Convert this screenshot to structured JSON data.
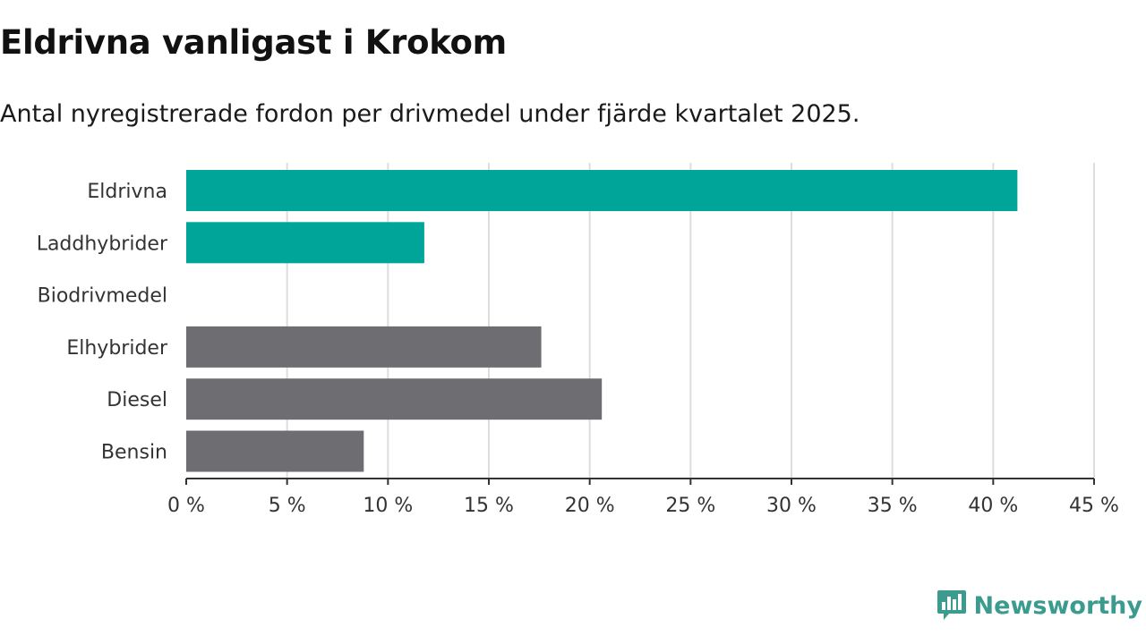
{
  "title": "Eldrivna vanligast i Krokom",
  "subtitle": "Antal nyregistrerade fordon per drivmedel under fjärde kvartalet 2025.",
  "chart_data": {
    "type": "bar",
    "orientation": "horizontal",
    "categories": [
      "Eldrivna",
      "Laddhybrider",
      "Biodrivmedel",
      "Elhybrider",
      "Diesel",
      "Bensin"
    ],
    "values": [
      41.2,
      11.8,
      0,
      17.6,
      20.6,
      8.8
    ],
    "colors": [
      "#00a59a",
      "#00a59a",
      "#00a59a",
      "#6e6d72",
      "#6e6d72",
      "#6e6d72"
    ],
    "unit": "%",
    "xlim": [
      0,
      45
    ],
    "ticks": [
      0,
      5,
      10,
      15,
      20,
      25,
      30,
      35,
      40,
      45
    ],
    "tick_labels": [
      "0 %",
      "5 %",
      "10 %",
      "15 %",
      "20 %",
      "25 %",
      "30 %",
      "35 %",
      "40 %",
      "45 %"
    ],
    "grid": true,
    "xlabel": "",
    "ylabel": ""
  },
  "brand": {
    "name": "Newsworthy",
    "color": "#3a9b8e"
  }
}
